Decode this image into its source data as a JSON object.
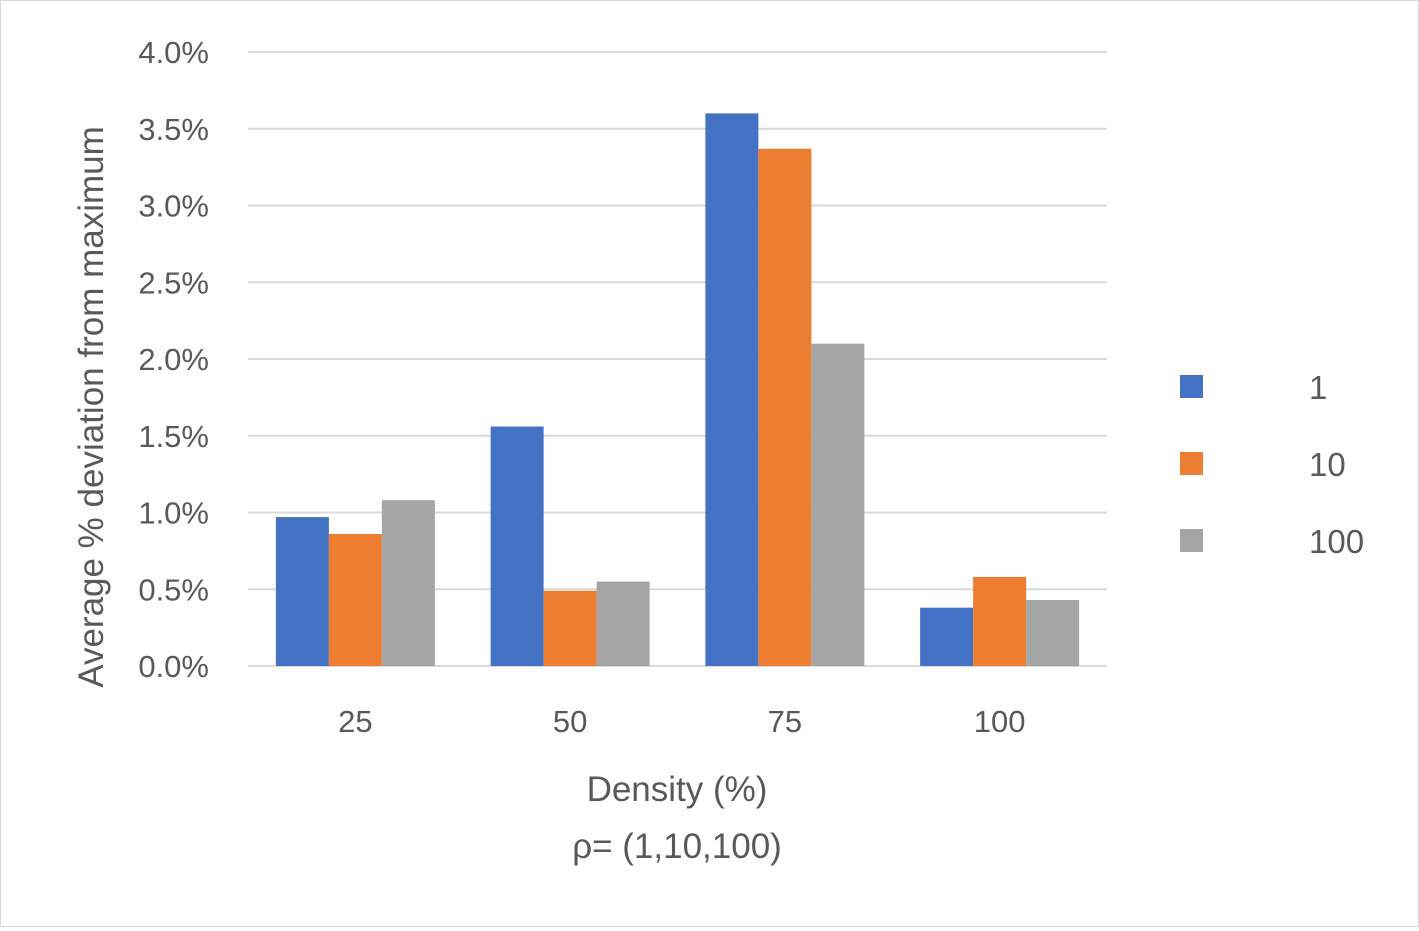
{
  "chart_data": {
    "type": "bar",
    "title": "",
    "xlabel": "Density (%)",
    "xlabel_sub": "ρ= (1,10,100)",
    "ylabel": "Average % deviation from maximum",
    "categories": [
      "25",
      "50",
      "75",
      "100"
    ],
    "ylim": [
      0,
      4.0
    ],
    "y_ticks": [
      0,
      0.5,
      1.0,
      1.5,
      2.0,
      2.5,
      3.0,
      3.5,
      4.0
    ],
    "y_tick_labels": [
      "0.0%",
      "0.5%",
      "1.0%",
      "1.5%",
      "2.0%",
      "2.5%",
      "3.0%",
      "3.5%",
      "4.0%"
    ],
    "y_unit": "%",
    "grid": true,
    "legend_position": "right",
    "series": [
      {
        "name": "1",
        "color": "#4472C4",
        "values": [
          0.97,
          1.56,
          3.6,
          0.38
        ]
      },
      {
        "name": "10",
        "color": "#ED7D31",
        "values": [
          0.86,
          0.49,
          3.37,
          0.58
        ]
      },
      {
        "name": "100",
        "color": "#A5A5A5",
        "values": [
          1.08,
          0.55,
          2.1,
          0.43
        ]
      }
    ]
  }
}
